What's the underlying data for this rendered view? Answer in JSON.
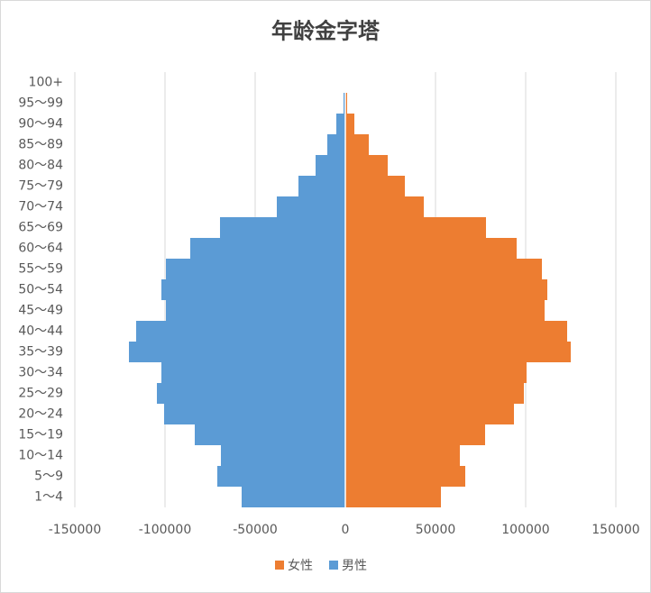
{
  "chart_data": {
    "type": "pyramid",
    "title": "年龄金字塔",
    "categories": [
      "1～4",
      "5～9",
      "10～14",
      "15～19",
      "20～24",
      "25～29",
      "30～34",
      "35～39",
      "40～44",
      "45～49",
      "50～54",
      "55～59",
      "60～64",
      "65～69",
      "70～74",
      "75～79",
      "80～84",
      "85～89",
      "90～94",
      "95～99",
      "100+"
    ],
    "series": [
      {
        "name": "女性",
        "color": "#ed7d31",
        "values": [
          53000,
          66500,
          63500,
          77500,
          93500,
          99000,
          100500,
          125000,
          123000,
          110500,
          112000,
          109000,
          95000,
          78000,
          43500,
          33000,
          23500,
          13000,
          5000,
          1000,
          0
        ]
      },
      {
        "name": "男性",
        "color": "#5b9bd5",
        "values": [
          -57500,
          -71000,
          -69000,
          -83500,
          -100500,
          -104500,
          -102000,
          -120000,
          -116000,
          -99500,
          -102000,
          -99500,
          -86000,
          -69500,
          -38000,
          -26000,
          -16500,
          -10000,
          -5000,
          -1000,
          0
        ]
      }
    ],
    "xlim": [
      -150000,
      150000
    ],
    "xticks": [
      -150000,
      -100000,
      -50000,
      0,
      50000,
      100000,
      150000
    ],
    "grid": true
  }
}
